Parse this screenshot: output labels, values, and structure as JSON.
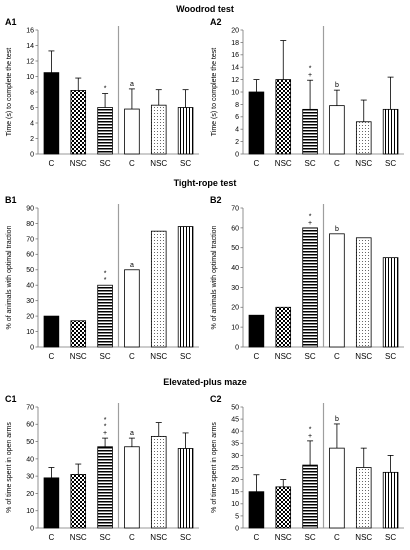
{
  "sections": {
    "woodrod": "Woodrod test",
    "tightrope": "Tight-rope test",
    "epm": "Elevated-plus maze"
  },
  "colors": {
    "stroke": "#000000",
    "grid": "#9e9e9e"
  },
  "chart_data": [
    {
      "id": "A1",
      "type": "bar",
      "label": "A1",
      "ylabel": "Time (s) to complete the test",
      "ylim": [
        0,
        16
      ],
      "ystep": 2,
      "categories": [
        "C",
        "NSC",
        "SC",
        "C",
        "NSC",
        "SC"
      ],
      "patterns": [
        "solid",
        "checker",
        "hlines",
        "empty",
        "dots",
        "vlines"
      ],
      "values": [
        10.5,
        8.2,
        6.0,
        5.8,
        6.3,
        6.0
      ],
      "errors": [
        2.8,
        1.6,
        1.8,
        2.6,
        2.0,
        2.3
      ],
      "annotations": [
        {
          "bar": 2,
          "lines": [
            "*"
          ]
        },
        {
          "bar": 3,
          "lines": [
            "a"
          ]
        }
      ]
    },
    {
      "id": "A2",
      "type": "bar",
      "label": "A2",
      "ylabel": "Time (s) to complete the test",
      "ylim": [
        0,
        20
      ],
      "ystep": 2,
      "categories": [
        "C",
        "NSC",
        "SC",
        "C",
        "NSC",
        "SC"
      ],
      "patterns": [
        "solid",
        "checker",
        "hlines",
        "empty",
        "dots",
        "vlines"
      ],
      "values": [
        10.0,
        12.0,
        7.2,
        7.8,
        5.2,
        7.2
      ],
      "errors": [
        2.0,
        6.3,
        4.7,
        2.5,
        3.5,
        5.2
      ],
      "annotations": [
        {
          "bar": 2,
          "lines": [
            "*",
            "+"
          ]
        },
        {
          "bar": 3,
          "lines": [
            "b"
          ]
        }
      ]
    },
    {
      "id": "B1",
      "type": "bar",
      "label": "B1",
      "ylabel": "% of animals with optimal traction",
      "ylim": [
        0,
        90
      ],
      "ystep": 10,
      "categories": [
        "C",
        "NSC",
        "SC",
        "C",
        "NSC",
        "SC"
      ],
      "patterns": [
        "solid",
        "checker",
        "hlines",
        "empty",
        "dots",
        "vlines"
      ],
      "values": [
        20,
        17,
        40,
        50,
        75,
        78
      ],
      "errors": [
        null,
        null,
        null,
        null,
        null,
        null
      ],
      "annotations": [
        {
          "bar": 2,
          "lines": [
            "*",
            "*"
          ]
        },
        {
          "bar": 3,
          "lines": [
            "a"
          ]
        }
      ]
    },
    {
      "id": "B2",
      "type": "bar",
      "label": "B2",
      "ylabel": "% of animals with optimal traction",
      "ylim": [
        0,
        70
      ],
      "ystep": 10,
      "categories": [
        "C",
        "NSC",
        "SC",
        "C",
        "NSC",
        "SC"
      ],
      "patterns": [
        "solid",
        "checker",
        "hlines",
        "empty",
        "dots",
        "vlines"
      ],
      "values": [
        16,
        20,
        60,
        57,
        55,
        45
      ],
      "errors": [
        null,
        null,
        null,
        null,
        null,
        null
      ],
      "annotations": [
        {
          "bar": 2,
          "lines": [
            "*",
            "+"
          ]
        },
        {
          "bar": 3,
          "lines": [
            "b"
          ]
        }
      ]
    },
    {
      "id": "C1",
      "type": "bar",
      "label": "C1",
      "ylabel": "% of time spent in open arms",
      "ylim": [
        0,
        70
      ],
      "ystep": 10,
      "categories": [
        "C",
        "NSC",
        "SC",
        "C",
        "NSC",
        "SC"
      ],
      "patterns": [
        "solid",
        "checker",
        "hlines",
        "empty",
        "dots",
        "vlines"
      ],
      "values": [
        29,
        31,
        47,
        47,
        53,
        46
      ],
      "errors": [
        6,
        6,
        5,
        5,
        8,
        9
      ],
      "annotations": [
        {
          "bar": 2,
          "lines": [
            "*",
            "*",
            "+"
          ]
        },
        {
          "bar": 3,
          "lines": [
            "a"
          ]
        }
      ]
    },
    {
      "id": "C2",
      "type": "bar",
      "label": "C2",
      "ylabel": "% of time spent in open arms",
      "ylim": [
        0,
        50
      ],
      "ystep": 5,
      "categories": [
        "C",
        "NSC",
        "SC",
        "C",
        "NSC",
        "SC"
      ],
      "patterns": [
        "solid",
        "checker",
        "hlines",
        "empty",
        "dots",
        "vlines"
      ],
      "values": [
        15,
        17,
        26,
        33,
        25,
        23
      ],
      "errors": [
        7,
        3,
        10,
        10,
        8,
        7
      ],
      "annotations": [
        {
          "bar": 2,
          "lines": [
            "*",
            "+"
          ]
        },
        {
          "bar": 3,
          "lines": [
            "b"
          ]
        }
      ]
    }
  ]
}
